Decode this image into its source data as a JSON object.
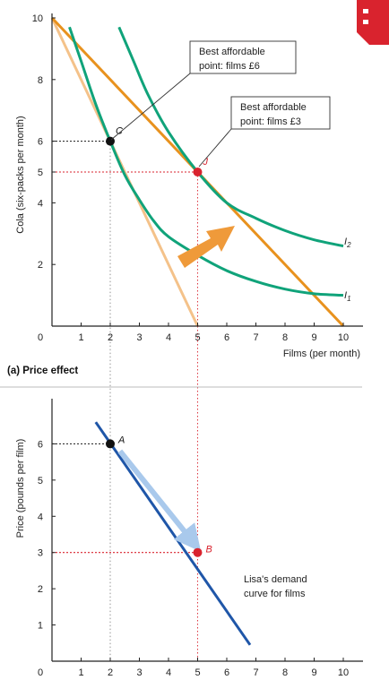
{
  "colors": {
    "budget_new": "#e8921e",
    "budget_old": "#f4c28a",
    "indifference": "#10a37a",
    "demand": "#1f56a8",
    "demand_arrow": "#a9c9ec",
    "shift_arrow": "#ef9a3a",
    "highlight": "#d9232e",
    "axis": "#222222",
    "logo": "#d9232e"
  },
  "chart_data": [
    {
      "type": "line",
      "title": "(a) Price effect",
      "xlabel": "Films (per month)",
      "ylabel": "Cola (six-packs per month)",
      "xlim": [
        0,
        10.5
      ],
      "ylim": [
        0,
        10.4
      ],
      "x_ticks": [
        "0",
        "1",
        "2",
        "3",
        "4",
        "5",
        "6",
        "7",
        "8",
        "9",
        "10"
      ],
      "y_ticks": [
        "2",
        "4",
        "5",
        "6",
        "8",
        "10"
      ],
      "series": [
        {
          "role": "budget_old",
          "x": [
            0,
            5
          ],
          "y": [
            10,
            0
          ]
        },
        {
          "role": "budget_new",
          "x": [
            0,
            10
          ],
          "y": [
            10,
            0
          ]
        },
        {
          "name": "I1",
          "label_main": "I",
          "label_sub": "1",
          "x": [
            0.6,
            1.0,
            1.5,
            2.0,
            2.5,
            3.0,
            3.5,
            4.0,
            5.0,
            6.0,
            7.0,
            8.0,
            9.0,
            10.0
          ],
          "y": [
            9.7,
            8.6,
            7.2,
            6.0,
            4.9,
            4.1,
            3.4,
            2.9,
            2.3,
            1.8,
            1.45,
            1.2,
            1.05,
            1.0
          ]
        },
        {
          "name": "I2",
          "label_main": "I",
          "label_sub": "2",
          "x": [
            2.3,
            2.8,
            3.3,
            4.0,
            5.0,
            6.0,
            7.0,
            8.0,
            9.0,
            10.0
          ],
          "y": [
            9.7,
            8.6,
            7.5,
            6.3,
            5.0,
            4.0,
            3.5,
            3.1,
            2.8,
            2.6
          ]
        }
      ],
      "points": [
        {
          "id": "C",
          "label": "C",
          "x": 2,
          "y": 6,
          "color": "#111111",
          "guide_y_label": "6"
        },
        {
          "id": "J",
          "label": "J",
          "x": 5,
          "y": 5,
          "color": "#d9232e",
          "guide_y_label": "5"
        }
      ],
      "annotations": [
        {
          "id": "ann_c",
          "line1": "Best affordable",
          "line2": "point: films £6"
        },
        {
          "id": "ann_j",
          "line1": "Best affordable",
          "line2": "point: films £3"
        }
      ]
    },
    {
      "type": "line",
      "title": "",
      "xlabel": "",
      "ylabel": "Price (pounds per film)",
      "xlim": [
        0,
        10.5
      ],
      "ylim": [
        0,
        7.2
      ],
      "x_ticks": [
        "0",
        "1",
        "2",
        "3",
        "4",
        "5",
        "6",
        "7",
        "8",
        "9",
        "10"
      ],
      "y_ticks": [
        "1",
        "2",
        "3",
        "4",
        "5",
        "6"
      ],
      "series": [
        {
          "role": "demand",
          "x": [
            1.5,
            6.8
          ],
          "y": [
            6.6,
            0.45
          ]
        }
      ],
      "points": [
        {
          "id": "A",
          "label": "A",
          "x": 2,
          "y": 6,
          "color": "#111111",
          "guide_y_label": "6"
        },
        {
          "id": "B",
          "label": "B",
          "x": 5,
          "y": 3,
          "color": "#d9232e",
          "guide_y_label": "3"
        }
      ],
      "annotations": [
        {
          "id": "ann_demand",
          "line1": "Lisa's demand",
          "line2": "curve for films"
        }
      ]
    }
  ]
}
